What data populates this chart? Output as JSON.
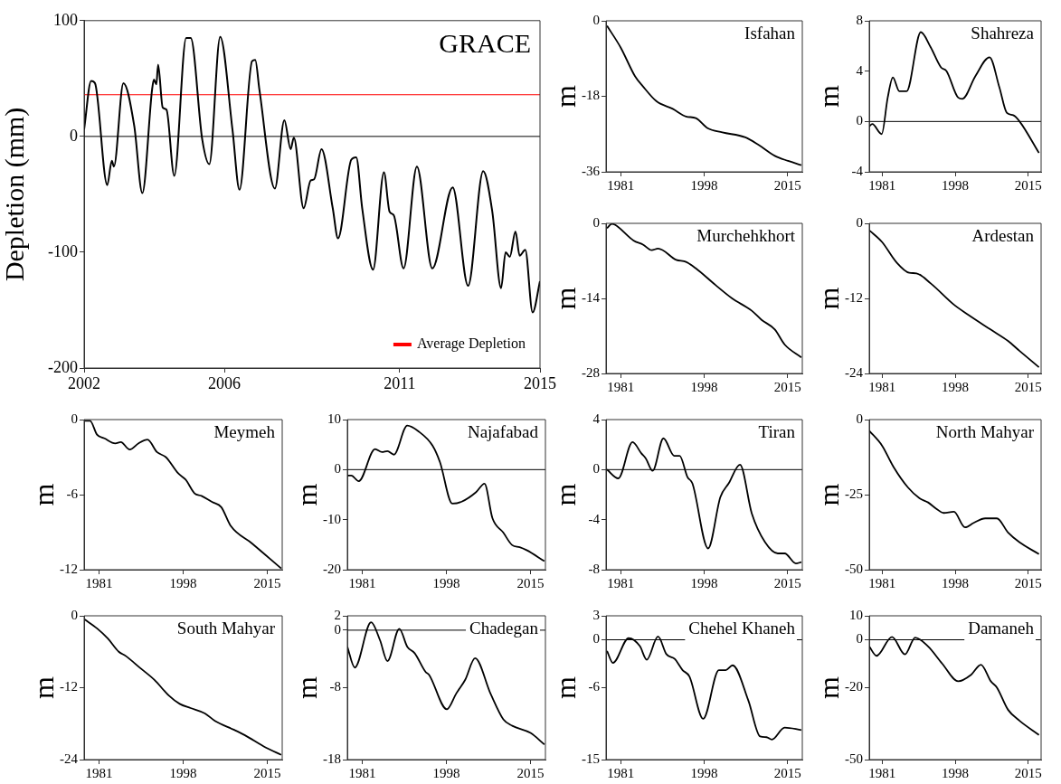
{
  "chart_data": [
    {
      "type": "line",
      "title": "GRACE",
      "ylabel": "Depletion (mm)",
      "xlim": [
        2002,
        2015
      ],
      "xticks": [
        2002,
        2006,
        2011,
        2015
      ],
      "ylim": [
        -200,
        100
      ],
      "yticks": [
        -200,
        -100,
        0,
        100
      ],
      "grid": false,
      "legend": "bottom right",
      "ref_lines": [
        {
          "axis": "y",
          "value": 0,
          "color": "#000000"
        },
        {
          "axis": "y",
          "value": 36,
          "label": "Average Depletion",
          "color": "#ff0000"
        }
      ],
      "x": [
        2002.0,
        2002.2,
        2002.31,
        2002.66,
        2002.79,
        2002.85,
        2003.12,
        2003.43,
        2003.66,
        2003.94,
        2003.99,
        2004.06,
        2004.11,
        2004.24,
        2004.35,
        2004.57,
        2004.91,
        2005.04,
        2005.37,
        2005.57,
        2005.88,
        2006.23,
        2006.43,
        2006.79,
        2006.88,
        2007.0,
        2007.44,
        2007.71,
        2007.89,
        2007.98,
        2008.26,
        2008.46,
        2008.56,
        2008.77,
        2009.09,
        2009.24,
        2009.62,
        2009.76,
        2009.93,
        2010.24,
        2010.55,
        2010.71,
        2010.83,
        2011.11,
        2011.49,
        2011.93,
        2012.51,
        2012.95,
        2013.38,
        2013.64,
        2013.89,
        2014.02,
        2014.14,
        2014.3,
        2014.42,
        2014.58,
        2014.79,
        2015.0
      ],
      "series": [
        {
          "color": "#000000",
          "values": [
            6,
            48,
            46,
            -42,
            -21,
            -26,
            46,
            9,
            -49,
            41,
            49,
            45,
            62,
            25,
            23,
            -34,
            85,
            85,
            -3,
            -24,
            86,
            6,
            -46,
            65,
            66,
            40,
            -45,
            14,
            -11,
            -1,
            -62,
            -38,
            -37,
            -11,
            -62,
            -88,
            -20,
            -18,
            -62,
            -115,
            -31,
            -65,
            -68,
            -114,
            -26,
            -114,
            -44,
            -129,
            -30,
            -65,
            -131,
            -100,
            -104,
            -82,
            -103,
            -98,
            -152,
            -125
          ]
        }
      ]
    },
    {
      "type": "line",
      "title": "Isfahan",
      "ylabel": "m",
      "xlim": [
        1978,
        2018
      ],
      "xticks": [
        1981,
        1998,
        2015
      ],
      "ylim": [
        -36,
        0
      ],
      "yticks": [
        -36,
        -18,
        0
      ],
      "grid": false,
      "x": [
        1978.2,
        1981,
        1983.9,
        1985.5,
        1988.3,
        1991.6,
        1994.3,
        1996.3,
        1998.7,
        2001.7,
        2006.4,
        2009.1,
        2012.4,
        2015.1,
        2017.8
      ],
      "series": [
        {
          "color": "#000000",
          "values": [
            -1.2,
            -6.4,
            -13.2,
            -15.6,
            -19.2,
            -21,
            -22.8,
            -23.2,
            -25.6,
            -26.6,
            -27.8,
            -29.6,
            -32.2,
            -33.4,
            -34.4
          ]
        }
      ]
    },
    {
      "type": "line",
      "title": "Shahreza",
      "ylabel": "m",
      "xlim": [
        1978,
        2018
      ],
      "xticks": [
        1981,
        1998,
        2015
      ],
      "ylim": [
        -4,
        8
      ],
      "yticks": [
        -4,
        0,
        4,
        8
      ],
      "grid": false,
      "ref_lines": [
        {
          "axis": "y",
          "value": 0,
          "color": "#000000"
        }
      ],
      "x": [
        1978,
        1978.7,
        1980.9,
        1982.3,
        1983.5,
        1985,
        1986.7,
        1990,
        1992.3,
        1994.7,
        1996,
        1998.7,
        1999.7,
        2002.7,
        2006,
        2008.3,
        2010,
        2011.5,
        2013,
        2017.5
      ],
      "series": [
        {
          "color": "#000000",
          "values": [
            -0.4,
            -0.2,
            -1.0,
            1.9,
            3.5,
            2.4,
            2.4,
            7.1,
            5.9,
            4.3,
            4.0,
            1.9,
            1.8,
            3.6,
            5.1,
            2.7,
            0.7,
            0.5,
            0,
            -2.5
          ]
        }
      ]
    },
    {
      "type": "line",
      "title": "Murchehkhort",
      "ylabel": "m",
      "xlim": [
        1978,
        2018
      ],
      "xticks": [
        1981,
        1998,
        2015
      ],
      "ylim": [
        -28,
        0
      ],
      "yticks": [
        -28,
        -14,
        0
      ],
      "grid": false,
      "x": [
        1978.2,
        1979.2,
        1979.9,
        1983.6,
        1985.6,
        1987.3,
        1988.6,
        1992.3,
        1994.3,
        1996.3,
        2000.3,
        2003.7,
        2007.7,
        2009.7,
        2012.4,
        2014.4,
        2017.8
      ],
      "series": [
        {
          "color": "#000000",
          "values": [
            -0.9,
            -0.1,
            -0.3,
            -3.2,
            -4.0,
            -5.0,
            -4.7,
            -6.8,
            -7.2,
            -8.4,
            -11.5,
            -14,
            -16.3,
            -18,
            -19.8,
            -22.6,
            -25
          ]
        }
      ]
    },
    {
      "type": "line",
      "title": "Ardestan",
      "ylabel": "m",
      "xlim": [
        1978,
        2018
      ],
      "xticks": [
        1981,
        1998,
        2015
      ],
      "ylim": [
        -24,
        0
      ],
      "yticks": [
        -24,
        -12,
        0
      ],
      "grid": false,
      "x": [
        1978,
        1981,
        1984.3,
        1987.3,
        1989,
        1992.3,
        1997.7,
        2001,
        2006.3,
        2010.3,
        2013,
        2017.5
      ],
      "series": [
        {
          "color": "#000000",
          "values": [
            -1.1,
            -3.0,
            -6.2,
            -7.9,
            -8.0,
            -9.6,
            -13.0,
            -14.6,
            -17,
            -18.8,
            -20.4,
            -23
          ]
        }
      ]
    },
    {
      "type": "line",
      "title": "Meymeh",
      "ylabel": "m",
      "xlim": [
        1978,
        2018
      ],
      "xticks": [
        1981,
        1998,
        2015
      ],
      "ylim": [
        -12,
        0
      ],
      "yticks": [
        -12,
        -6,
        0
      ],
      "grid": false,
      "x": [
        1978.1,
        1979.2,
        1980.6,
        1982.1,
        1984.3,
        1985.4,
        1987.2,
        1989,
        1990.8,
        1992.7,
        1994.5,
        1997,
        1998.5,
        2000.3,
        2001.7,
        2003.9,
        2005.7,
        2007.6,
        2011.9,
        2017.8
      ],
      "series": [
        {
          "color": "#000000",
          "values": [
            -0.1,
            -0.1,
            -1.2,
            -1.5,
            -1.9,
            -1.8,
            -2.4,
            -1.9,
            -1.6,
            -2.6,
            -3.0,
            -4.3,
            -4.8,
            -5.9,
            -6.1,
            -6.6,
            -7.0,
            -8.5,
            -9.9,
            -11.9
          ]
        }
      ]
    },
    {
      "type": "line",
      "title": "Najafabad",
      "ylabel": "m",
      "xlim": [
        1978,
        2018
      ],
      "xticks": [
        1981,
        1998,
        2015
      ],
      "ylim": [
        -20,
        10
      ],
      "yticks": [
        -20,
        -10,
        0,
        10
      ],
      "grid": false,
      "ref_lines": [
        {
          "axis": "y",
          "value": 0,
          "color": "#000000"
        }
      ],
      "x": [
        1978,
        1978.8,
        1980.3,
        1983.6,
        1985,
        1986.1,
        1987.4,
        1990.1,
        1992.3,
        1995.2,
        1996.7,
        1999.2,
        2001.1,
        2004,
        2005.7,
        2007.3,
        2009.5,
        2011.3,
        2012.8,
        2014.2,
        2017.8
      ],
      "series": [
        {
          "color": "#000000",
          "values": [
            -1.2,
            -1.2,
            -2.3,
            4.1,
            3.5,
            3.7,
            3.0,
            8.8,
            7.7,
            4.8,
            1.5,
            -6.8,
            -6.4,
            -4.5,
            -2.8,
            -9.7,
            -12.6,
            -15.1,
            -15.5,
            -16.1,
            -18.3
          ]
        }
      ]
    },
    {
      "type": "line",
      "title": "Tiran",
      "ylabel": "m",
      "xlim": [
        1978,
        2018
      ],
      "xticks": [
        1981,
        1998,
        2015
      ],
      "ylim": [
        -8,
        4
      ],
      "yticks": [
        -8,
        -4,
        0,
        4
      ],
      "grid": false,
      "ref_lines": [
        {
          "axis": "y",
          "value": 0,
          "color": "#000000"
        }
      ],
      "x": [
        1978.2,
        1980.5,
        1983.4,
        1985.2,
        1986.1,
        1987.5,
        1989.7,
        1991.9,
        1993,
        1994.6,
        1995.6,
        1998.8,
        2001.3,
        2003,
        2005.3,
        2007.7,
        2010.4,
        2013,
        2014.4,
        2016.7,
        2017.8
      ],
      "series": [
        {
          "color": "#000000",
          "values": [
            0,
            -0.7,
            2.2,
            1.3,
            0.9,
            -0.1,
            2.5,
            1.1,
            1.1,
            -0.6,
            -1.1,
            -6.3,
            -2.2,
            -1.1,
            0.4,
            -3.5,
            -5.8,
            -6.7,
            -6.7,
            -7.5,
            -7.4
          ]
        }
      ]
    },
    {
      "type": "line",
      "title": "North Mahyar",
      "ylabel": "m",
      "xlim": [
        1978,
        2018
      ],
      "xticks": [
        1981,
        1998,
        2015
      ],
      "ylim": [
        -50,
        0
      ],
      "yticks": [
        -50,
        -25,
        0
      ],
      "grid": false,
      "x": [
        1978,
        1981,
        1983.7,
        1987,
        1989.7,
        1991.7,
        1993.7,
        1995.3,
        1997.7,
        2000.3,
        2002.3,
        2005,
        2007.7,
        2010.3,
        2013,
        2017.5
      ],
      "series": [
        {
          "color": "#000000",
          "values": [
            -3.7,
            -8.7,
            -15.9,
            -22.6,
            -26.2,
            -27.6,
            -29.8,
            -31.1,
            -30.7,
            -35.9,
            -34.4,
            -32.9,
            -32.9,
            -37.6,
            -40.9,
            -44.8
          ]
        }
      ]
    },
    {
      "type": "line",
      "title": "South Mahyar",
      "ylabel": "m",
      "xlim": [
        1978,
        2018
      ],
      "xticks": [
        1981,
        1998,
        2015
      ],
      "ylim": [
        -24,
        0
      ],
      "yticks": [
        -24,
        -12,
        0
      ],
      "grid": false,
      "x": [
        1978.1,
        1980.6,
        1982.8,
        1985,
        1986.4,
        1989.3,
        1992.2,
        1995.1,
        1997.3,
        1999.5,
        2002.4,
        2004.5,
        2008.2,
        2010.4,
        2014.7,
        2017.8
      ],
      "series": [
        {
          "color": "#000000",
          "values": [
            -0.6,
            -2.1,
            -3.8,
            -6.0,
            -6.7,
            -8.7,
            -10.7,
            -13.3,
            -14.7,
            -15.4,
            -16.3,
            -17.6,
            -19,
            -19.9,
            -22.0,
            -23.2
          ]
        }
      ]
    },
    {
      "type": "line",
      "title": "Chadegan",
      "ylabel": "m",
      "xlim": [
        1978,
        2018
      ],
      "xticks": [
        1981,
        1998,
        2015
      ],
      "ylim": [
        -18,
        2
      ],
      "yticks": [
        -18,
        -8,
        0,
        2
      ],
      "grid": false,
      "ref_lines": [
        {
          "axis": "y",
          "value": 0,
          "color": "#000000"
        }
      ],
      "x": [
        1978,
        1979.5,
        1982.8,
        1984.6,
        1986.1,
        1988.5,
        1990.1,
        1991.6,
        1993.8,
        1994.5,
        1998.1,
        2000,
        2001.8,
        2003.8,
        2006.9,
        2009.5,
        2011.3,
        2015,
        2017.8
      ],
      "series": [
        {
          "color": "#000000",
          "values": [
            -2.3,
            -5.2,
            1.1,
            -1.4,
            -4.3,
            0.2,
            -2.3,
            -3.2,
            -5.8,
            -6.2,
            -11,
            -8.8,
            -6.9,
            -3.9,
            -8.8,
            -12.4,
            -13.3,
            -14.3,
            -15.9
          ]
        }
      ]
    },
    {
      "type": "line",
      "title": "Chehel Khaneh",
      "ylabel": "m",
      "xlim": [
        1978,
        2018
      ],
      "xticks": [
        1981,
        1998,
        2015
      ],
      "ylim": [
        -15,
        3
      ],
      "yticks": [
        -15,
        -6,
        0,
        3
      ],
      "grid": false,
      "ref_lines": [
        {
          "axis": "y",
          "value": 0,
          "color": "#000000"
        }
      ],
      "x": [
        1978.2,
        1979.4,
        1982.6,
        1984.9,
        1986.3,
        1988.6,
        1990.3,
        1992,
        1993.6,
        1995,
        1997.8,
        2001,
        2002.4,
        2003.8,
        2007,
        2009.4,
        2010.7,
        2011.8,
        2014.4,
        2017.8
      ],
      "series": [
        {
          "color": "#000000",
          "values": [
            -1.4,
            -2.9,
            0.2,
            -0.8,
            -2.5,
            0.4,
            -1.8,
            -2.4,
            -3.8,
            -4.6,
            -9.9,
            -3.8,
            -3.8,
            -3.2,
            -7.6,
            -12.1,
            -12.2,
            -12.5,
            -11,
            -11.3
          ]
        }
      ]
    },
    {
      "type": "line",
      "title": "Damaneh",
      "ylabel": "m",
      "xlim": [
        1978,
        2018
      ],
      "xticks": [
        1981,
        1998,
        2015
      ],
      "ylim": [
        -50,
        10
      ],
      "yticks": [
        -50,
        -20,
        0,
        10
      ],
      "grid": false,
      "ref_lines": [
        {
          "axis": "y",
          "value": 0,
          "color": "#000000"
        }
      ],
      "x": [
        1978,
        1979.7,
        1983.3,
        1986.3,
        1988.7,
        1991.7,
        1995,
        1998.7,
        2001.7,
        2004,
        2006.3,
        2007.7,
        2010.3,
        2013,
        2017.5
      ],
      "series": [
        {
          "color": "#000000",
          "values": [
            -2.8,
            -6.7,
            1.2,
            -6.1,
            0.9,
            -2.8,
            -10,
            -17.3,
            -14.6,
            -10.4,
            -17.3,
            -19.9,
            -29.2,
            -33.8,
            -39.7
          ]
        }
      ]
    }
  ]
}
